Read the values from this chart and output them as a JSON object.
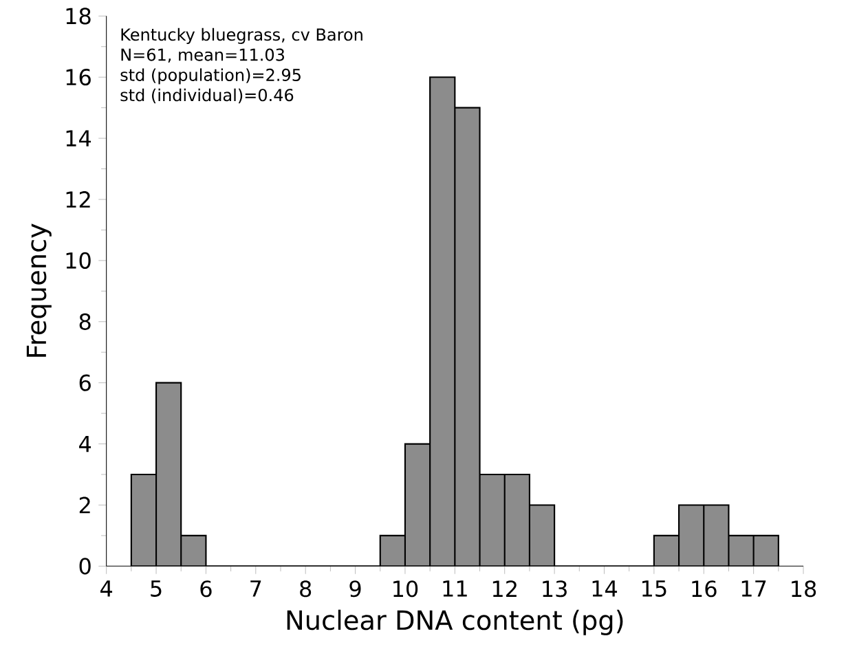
{
  "chart_data": {
    "type": "histogram",
    "xlabel": "Nuclear DNA content (pg)",
    "ylabel": "Frequency",
    "annotations": [
      "Kentucky bluegrass, cv Baron",
      "N=61, mean=11.03",
      "std (population)=2.95",
      "std (individual)=0.46"
    ],
    "bins": [
      4.5,
      5,
      5.5,
      6,
      6.5,
      7,
      7.5,
      8,
      8.5,
      9,
      9.5,
      10,
      10.5,
      11,
      11.5,
      12,
      12.5,
      13,
      13.5,
      14,
      14.5,
      15,
      15.5,
      16,
      16.5,
      17,
      17.5
    ],
    "values": [
      3,
      6,
      1,
      0,
      0,
      0,
      0,
      0,
      0,
      0,
      1,
      4,
      16,
      15,
      3,
      3,
      2,
      0,
      0,
      0,
      0,
      1,
      2,
      2,
      1,
      1
    ],
    "color": "#8c8c8c",
    "xlim": [
      4,
      18
    ],
    "xticks": [
      4,
      5,
      6,
      7,
      8,
      9,
      10,
      11,
      12,
      13,
      14,
      15,
      16,
      17,
      18
    ],
    "ylim": [
      0,
      18
    ],
    "yticks": [
      0,
      2,
      4,
      6,
      8,
      10,
      12,
      14,
      16,
      18
    ],
    "grid": false
  }
}
